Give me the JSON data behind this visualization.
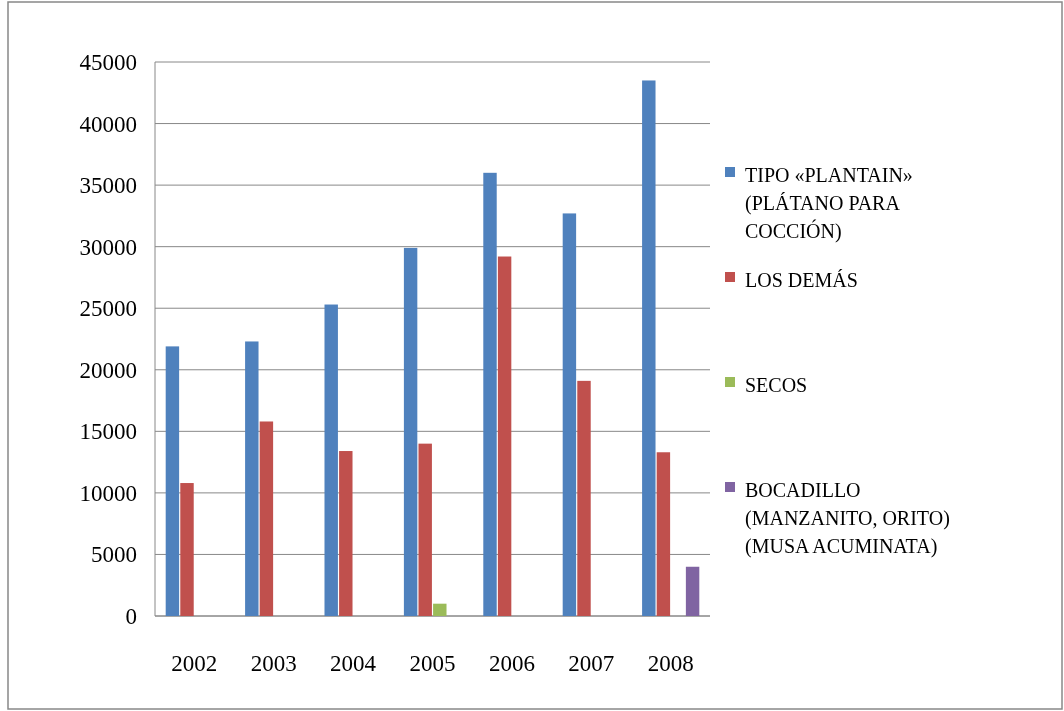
{
  "chart_data": {
    "type": "bar",
    "categories": [
      "2002",
      "2003",
      "2004",
      "2005",
      "2006",
      "2007",
      "2008"
    ],
    "series": [
      {
        "name": "TIPO «PLANTAIN» (PLÁTANO PARA COCCIÓN)",
        "color": "#4f81bd",
        "values": [
          21900,
          22300,
          25300,
          29900,
          36000,
          32700,
          43500
        ]
      },
      {
        "name": "LOS DEMÁS",
        "color": "#c0504d",
        "values": [
          10800,
          15800,
          13400,
          14000,
          29200,
          19100,
          13300
        ]
      },
      {
        "name": "SECOS",
        "color": "#9bbb59",
        "values": [
          0,
          0,
          0,
          1000,
          0,
          0,
          0
        ]
      },
      {
        "name": "BOCADILLO (MANZANITO, ORITO) (MUSA ACUMINATA)",
        "color": "#8064a2",
        "values": [
          0,
          0,
          0,
          0,
          0,
          0,
          4000
        ]
      }
    ],
    "ylim": [
      0,
      45000
    ],
    "yticks": [
      0,
      5000,
      10000,
      15000,
      20000,
      25000,
      30000,
      35000,
      40000,
      45000
    ],
    "grid": "y",
    "legend": "right"
  }
}
